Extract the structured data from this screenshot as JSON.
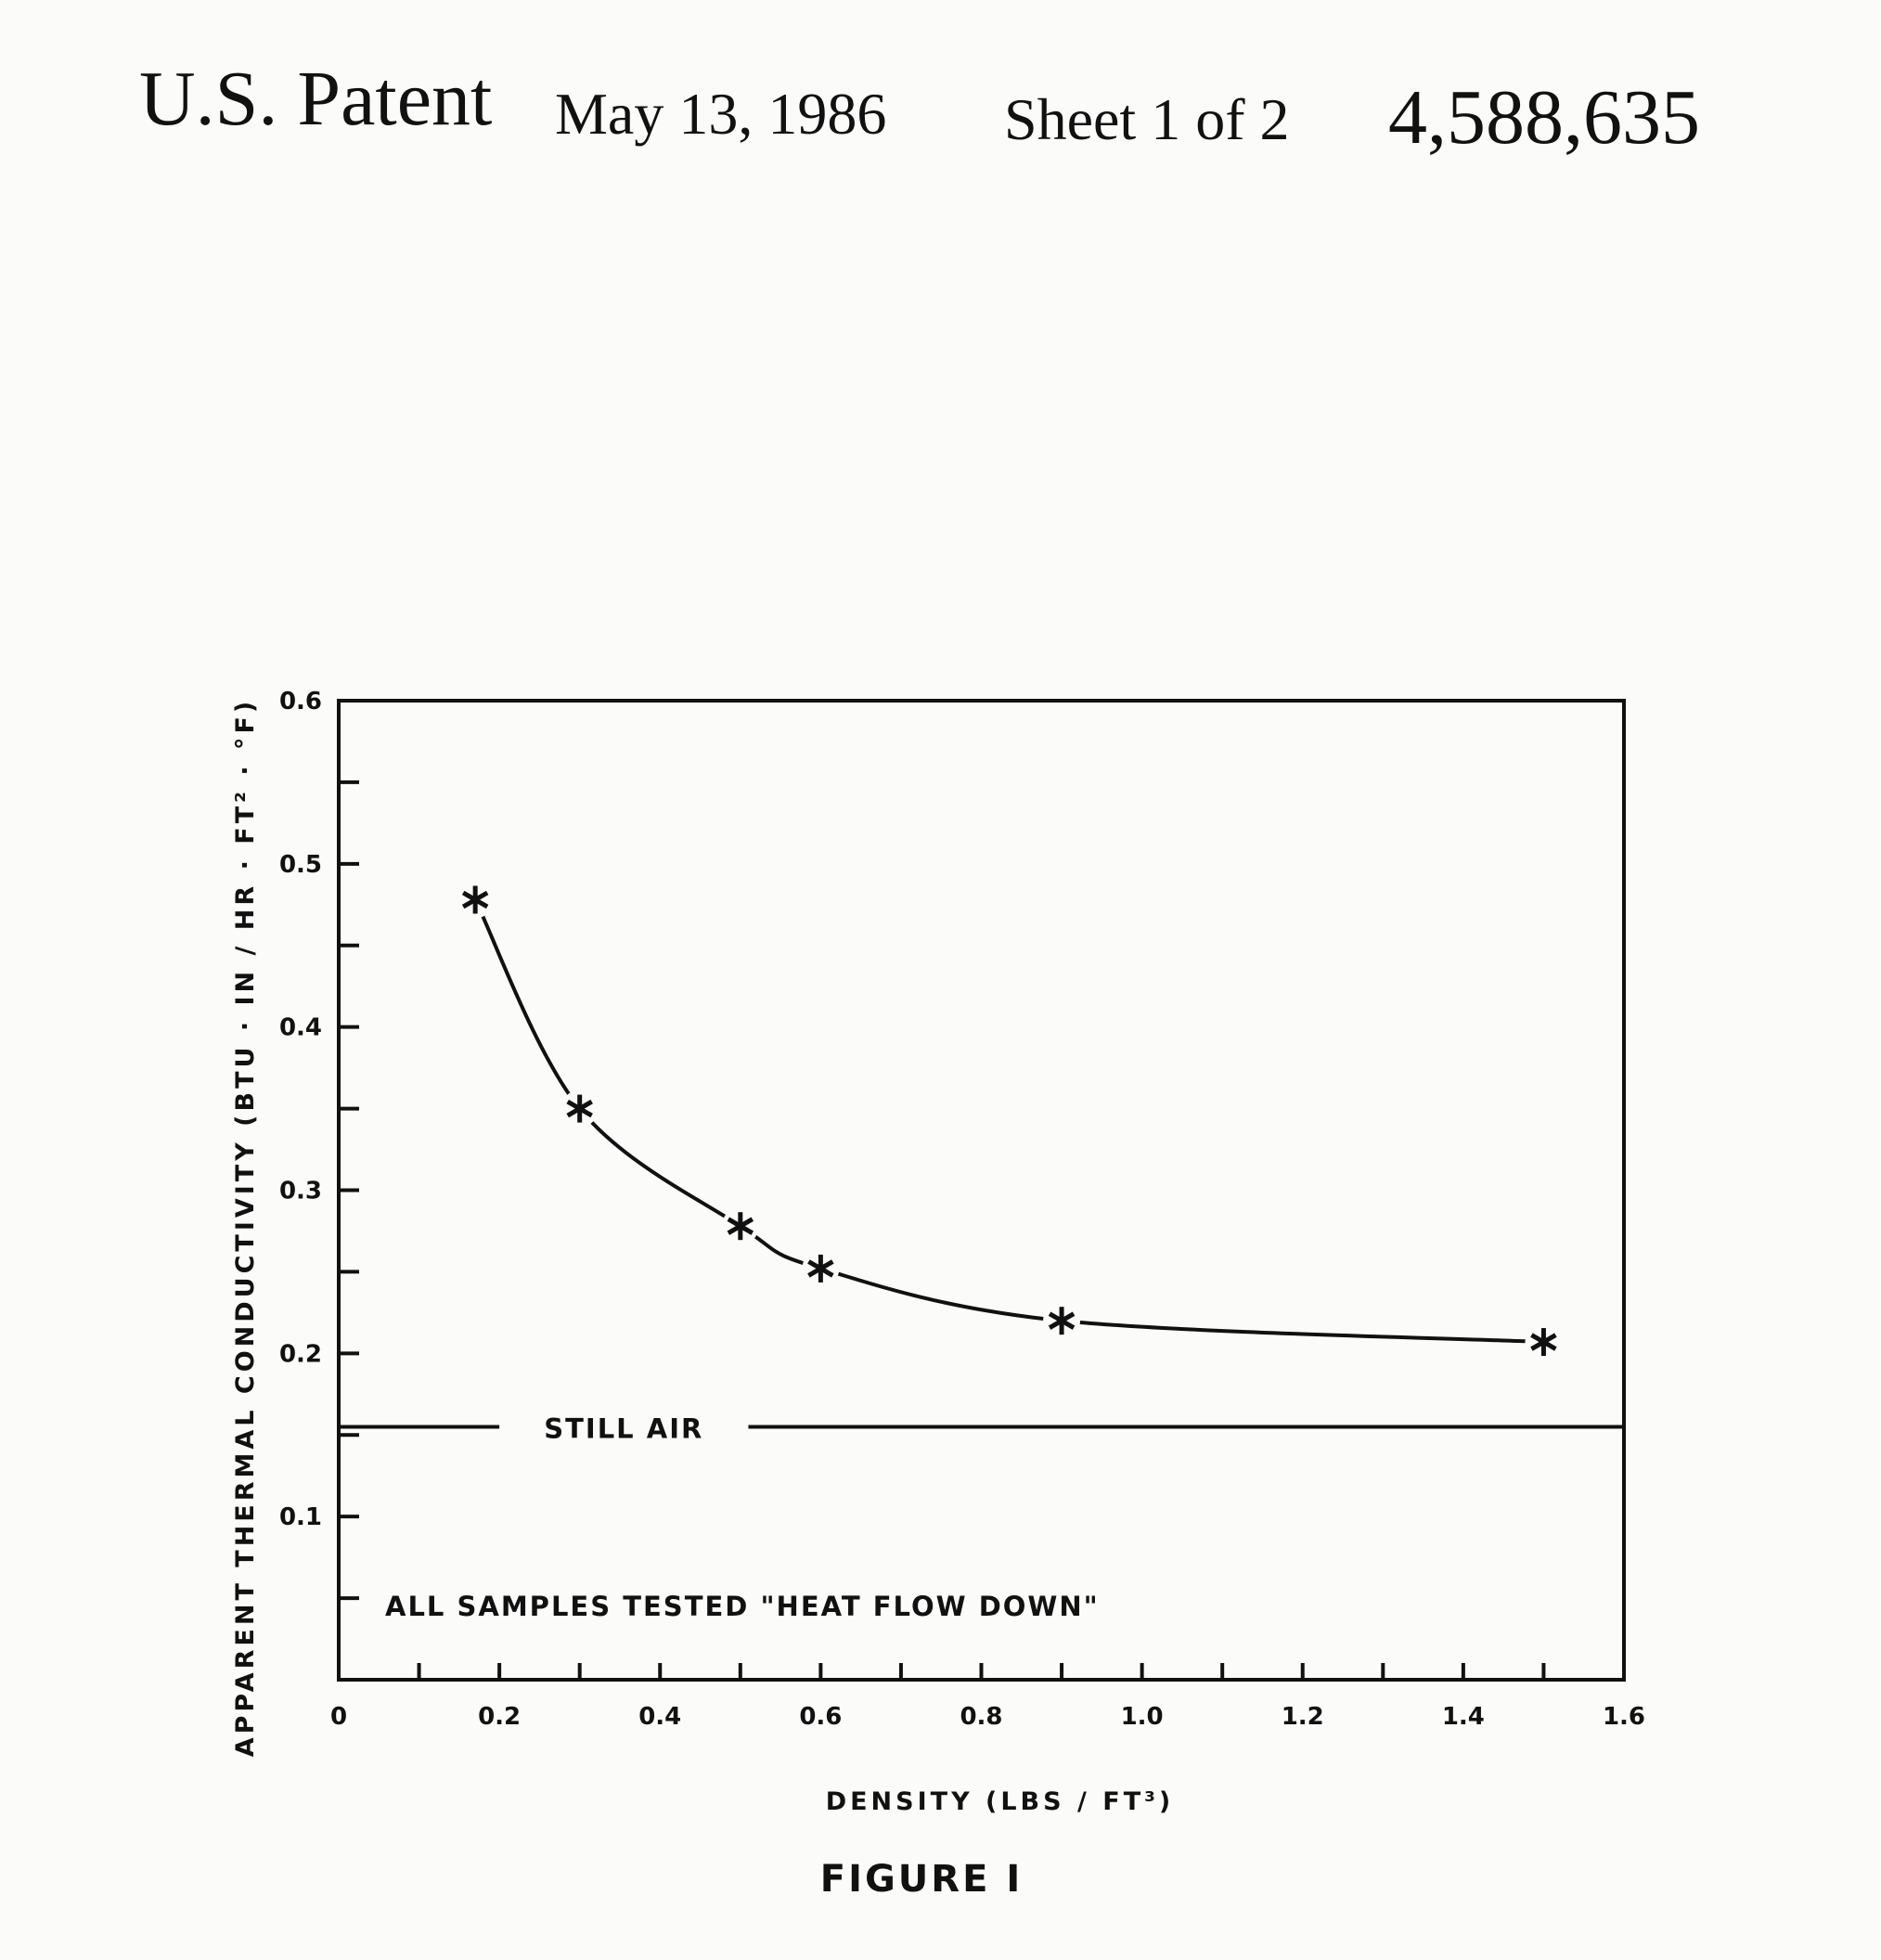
{
  "header": {
    "patent_label": "U.S. Patent",
    "date": "May 13, 1986",
    "sheet": "Sheet 1 of 2",
    "patent_number": "4,588,635"
  },
  "figure_caption": "FIGURE I",
  "chart_data": {
    "type": "line",
    "xlabel": "DENSITY (LBS / FT³)",
    "ylabel": "APPARENT THERMAL CONDUCTIVITY (BTU · IN / HR · FT² · °F)",
    "xlim": [
      0,
      1.6
    ],
    "ylim": [
      0,
      0.6
    ],
    "x_ticks": [
      "0",
      "0.2",
      "0.4",
      "0.6",
      "0.8",
      "1.0",
      "1.2",
      "1.4",
      "1.6"
    ],
    "y_ticks": [
      "0.1",
      "0.2",
      "0.3",
      "0.4",
      "0.5",
      "0.6"
    ],
    "marker": "*",
    "series": [
      {
        "x": [
          0.17,
          0.3,
          0.5,
          0.6,
          0.9,
          1.5
        ],
        "y": [
          0.478,
          0.35,
          0.278,
          0.252,
          0.22,
          0.207
        ]
      }
    ],
    "reference_line": {
      "label": "STILL AIR",
      "y": 0.155
    },
    "annotation": "ALL SAMPLES TESTED \"HEAT FLOW DOWN\"",
    "grid": false
  }
}
